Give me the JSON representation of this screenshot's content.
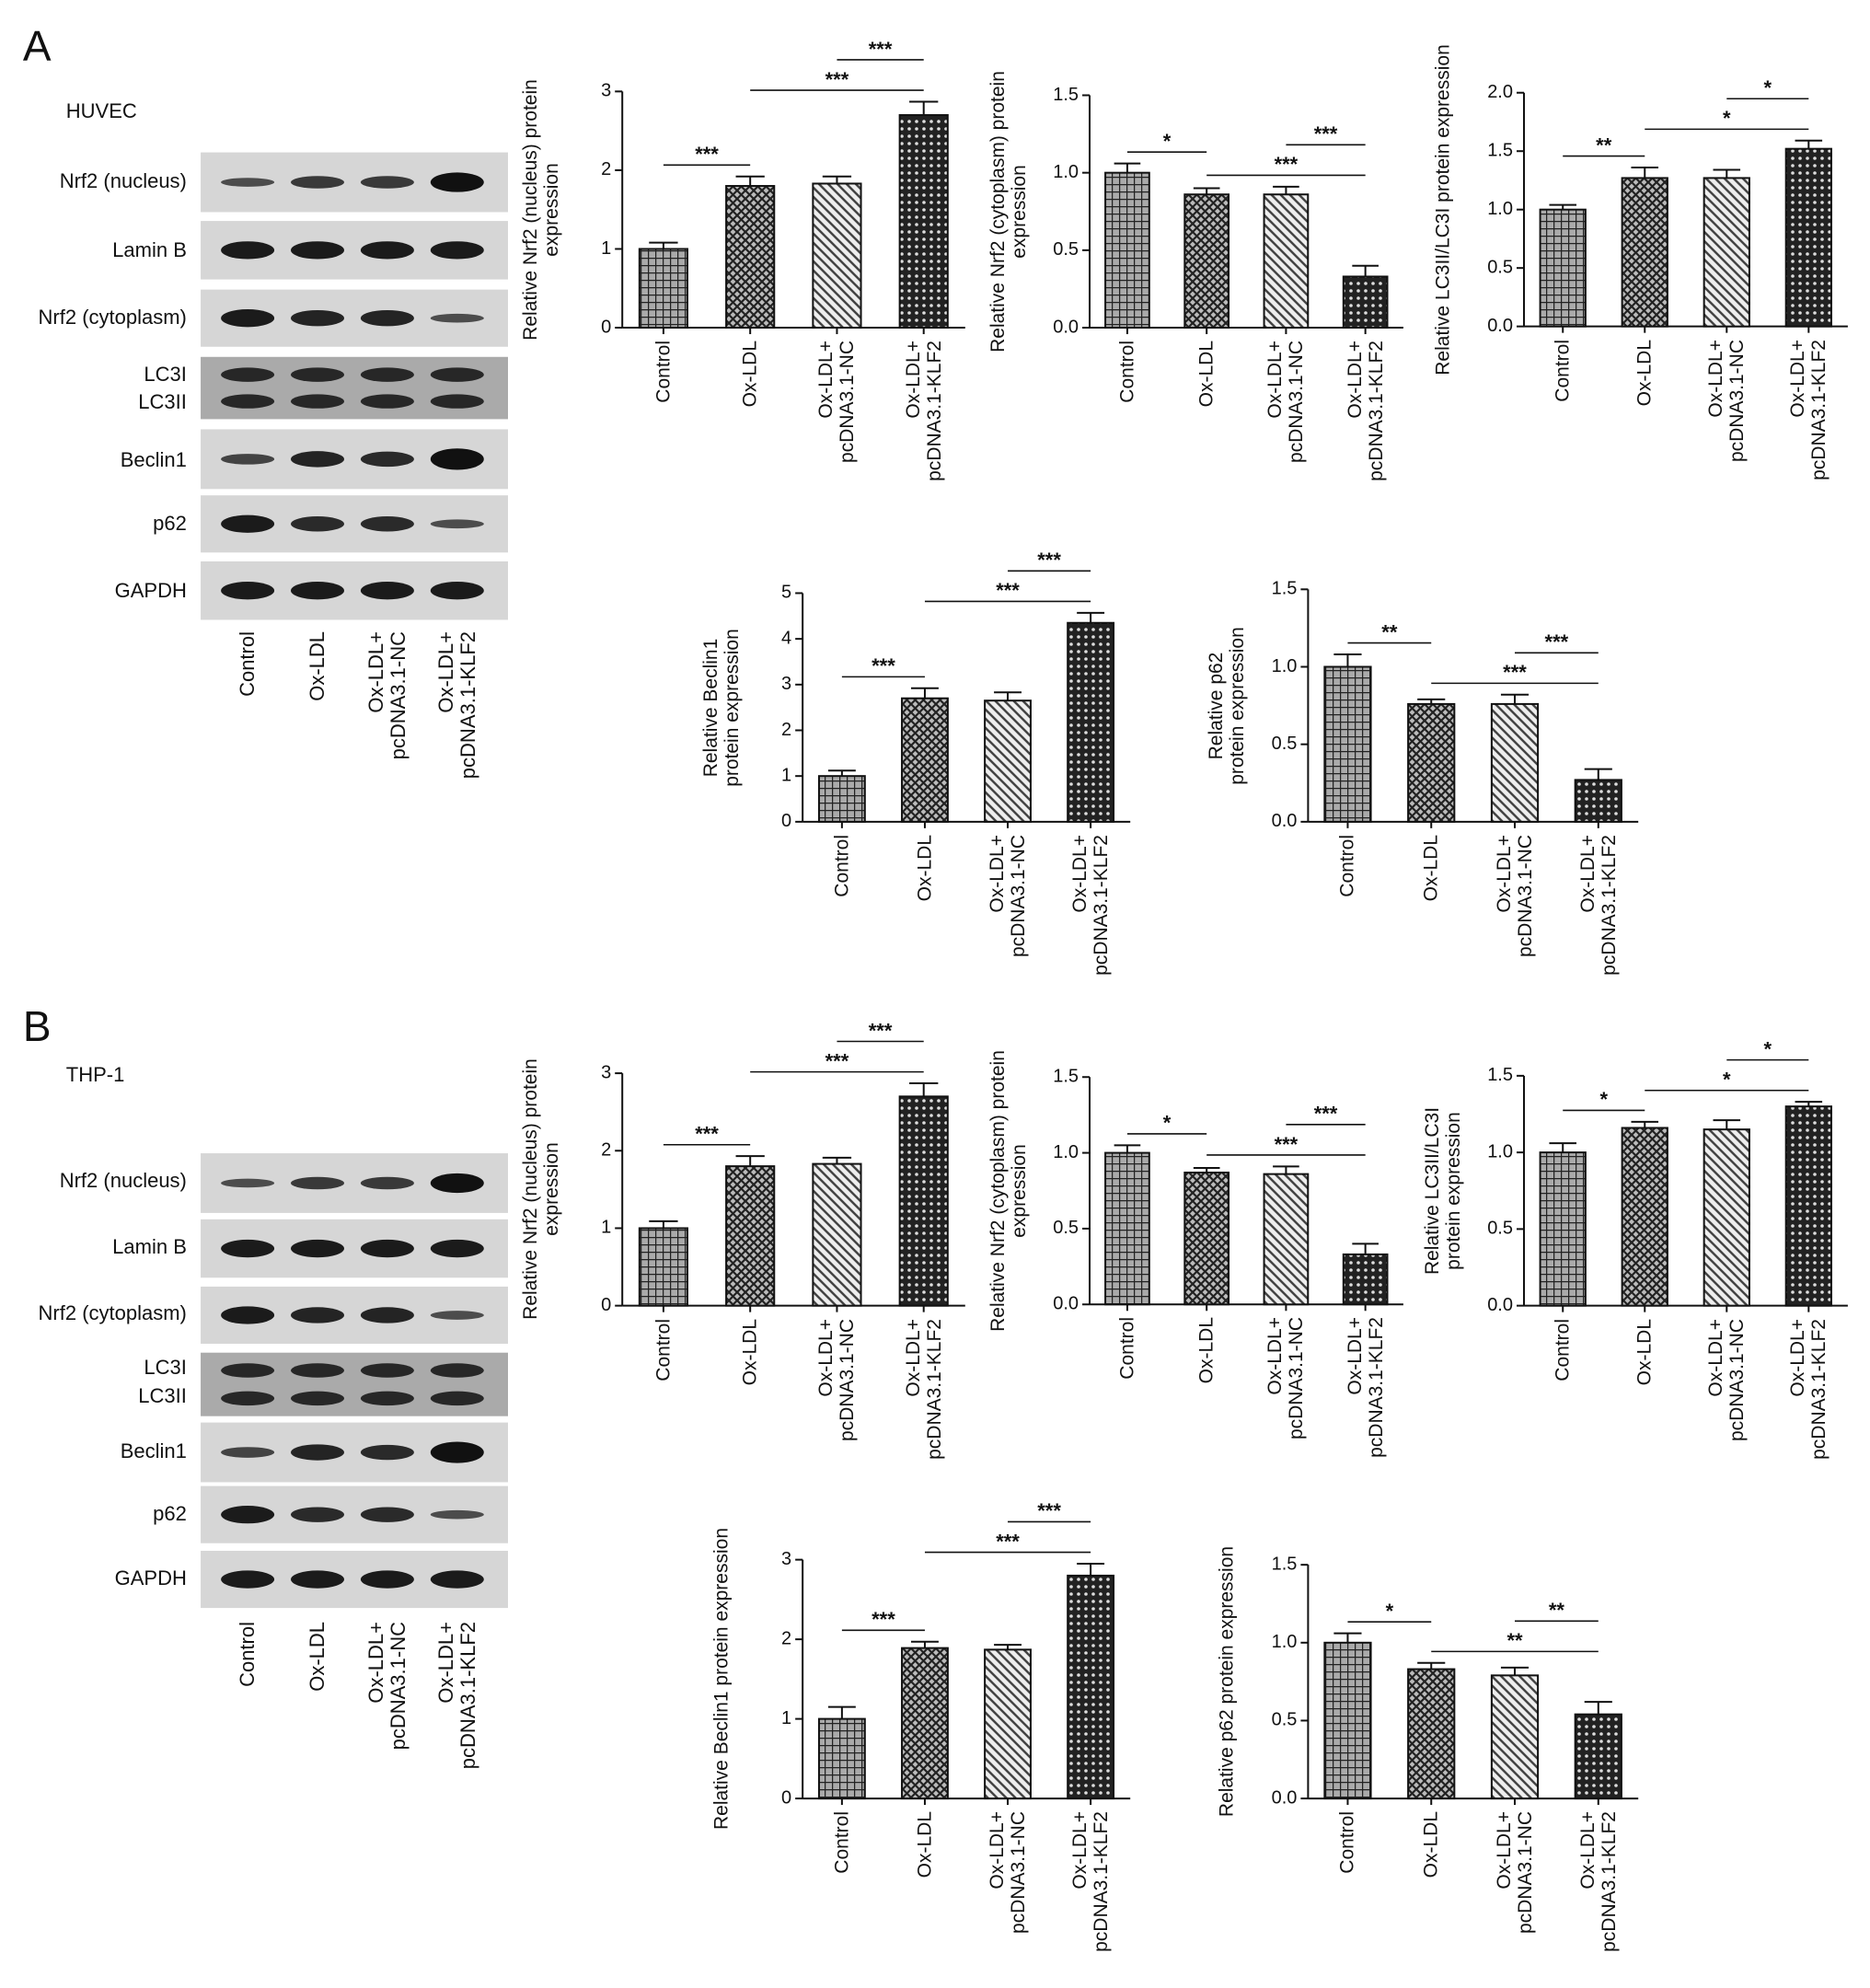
{
  "panels": [
    {
      "letter": "A",
      "cell_line": "HUVEC",
      "blot_labels": [
        "Nrf2 (nucleus)",
        "Lamin B",
        "Nrf2 (cytoplasm)",
        "LC3I",
        "LC3II",
        "Beclin1",
        "p62",
        "GAPDH"
      ],
      "lanes": [
        "Control",
        "Ox-LDL",
        "Ox-LDL+\npcDNA3.1-NC",
        "Ox-LDL+\npcDNA3.1-KLF2"
      ]
    },
    {
      "letter": "B",
      "cell_line": "THP-1",
      "blot_labels": [
        "Nrf2 (nucleus)",
        "Lamin B",
        "Nrf2 (cytoplasm)",
        "LC3I",
        "LC3II",
        "Beclin1",
        "p62",
        "GAPDH"
      ],
      "lanes": [
        "Control",
        "Ox-LDL",
        "Ox-LDL+\npcDNA3.1-NC",
        "Ox-LDL+\npcDNA3.1-KLF2"
      ]
    }
  ],
  "chart_data": [
    {
      "type": "bar",
      "ylabel": "Relative Nrf2 (nucleus) protein\nexpression",
      "categories": [
        "Control",
        "Ox-LDL",
        "Ox-LDL+\npcDNA3.1-NC",
        "Ox-LDL+\npcDNA3.1-KLF2"
      ],
      "values": [
        1.0,
        1.8,
        1.83,
        2.7
      ],
      "errors": [
        0.08,
        0.12,
        0.09,
        0.17
      ],
      "ylim": [
        0,
        3
      ],
      "yticks": [
        0,
        1,
        2,
        3
      ],
      "annotations": [
        {
          "text": "***",
          "from": 0,
          "to": 1
        },
        {
          "text": "***",
          "from": 1,
          "to": 3
        },
        {
          "text": "***",
          "from": 2,
          "to": 3
        }
      ]
    },
    {
      "type": "bar",
      "ylabel": "Relative Nrf2 (cytoplasm) protein\nexpression",
      "categories": [
        "Control",
        "Ox-LDL",
        "Ox-LDL+\npcDNA3.1-NC",
        "Ox-LDL+\npcDNA3.1-KLF2"
      ],
      "values": [
        1.0,
        0.86,
        0.86,
        0.33
      ],
      "errors": [
        0.06,
        0.04,
        0.05,
        0.07
      ],
      "ylim": [
        0,
        1.5
      ],
      "yticks": [
        {
          "value": 0,
          "label": "0.0"
        },
        {
          "value": 0.5,
          "label": "0.5"
        },
        {
          "value": 1,
          "label": "1.0"
        },
        {
          "value": 1.5,
          "label": "1.5"
        }
      ],
      "annotations": [
        {
          "text": "*",
          "from": 0,
          "to": 1
        },
        {
          "text": "***",
          "from": 1,
          "to": 3
        },
        {
          "text": "***",
          "from": 2,
          "to": 3
        }
      ]
    },
    {
      "type": "bar",
      "ylabel": "Relative LC3II/LC3I protein expression",
      "categories": [
        "Control",
        "Ox-LDL",
        "Ox-LDL+\npcDNA3.1-NC",
        "Ox-LDL+\npcDNA3.1-KLF2"
      ],
      "values": [
        1.0,
        1.27,
        1.27,
        1.52
      ],
      "errors": [
        0.04,
        0.09,
        0.07,
        0.07
      ],
      "ylim": [
        0,
        2
      ],
      "yticks": [
        {
          "value": 0,
          "label": "0.0"
        },
        {
          "value": 0.5,
          "label": "0.5"
        },
        {
          "value": 1,
          "label": "1.0"
        },
        {
          "value": 1.5,
          "label": "1.5"
        },
        {
          "value": 2,
          "label": "2.0"
        }
      ],
      "annotations": [
        {
          "text": "**",
          "from": 0,
          "to": 1
        },
        {
          "text": "*",
          "from": 1,
          "to": 3
        },
        {
          "text": "*",
          "from": 2,
          "to": 3
        }
      ]
    },
    {
      "type": "bar",
      "ylabel": "Relative Beclin1\nprotein expression",
      "categories": [
        "Control",
        "Ox-LDL",
        "Ox-LDL+\npcDNA3.1-NC",
        "Ox-LDL+\npcDNA3.1-KLF2"
      ],
      "values": [
        1.0,
        2.7,
        2.65,
        4.35
      ],
      "errors": [
        0.12,
        0.22,
        0.18,
        0.22
      ],
      "ylim": [
        0,
        5
      ],
      "yticks": [
        0,
        1,
        2,
        3,
        4,
        5
      ],
      "annotations": [
        {
          "text": "***",
          "from": 0,
          "to": 1
        },
        {
          "text": "***",
          "from": 1,
          "to": 3
        },
        {
          "text": "***",
          "from": 2,
          "to": 3
        }
      ]
    },
    {
      "type": "bar",
      "ylabel": "Relative p62\nprotein expression",
      "categories": [
        "Control",
        "Ox-LDL",
        "Ox-LDL+\npcDNA3.1-NC",
        "Ox-LDL+\npcDNA3.1-KLF2"
      ],
      "values": [
        1.0,
        0.76,
        0.76,
        0.27
      ],
      "errors": [
        0.08,
        0.03,
        0.06,
        0.07
      ],
      "ylim": [
        0,
        1.5
      ],
      "yticks": [
        {
          "value": 0,
          "label": "0.0"
        },
        {
          "value": 0.5,
          "label": "0.5"
        },
        {
          "value": 1,
          "label": "1.0"
        },
        {
          "value": 1.5,
          "label": "1.5"
        }
      ],
      "annotations": [
        {
          "text": "**",
          "from": 0,
          "to": 1
        },
        {
          "text": "***",
          "from": 1,
          "to": 3
        },
        {
          "text": "***",
          "from": 2,
          "to": 3
        }
      ]
    },
    {
      "type": "bar",
      "ylabel": "Relative Nrf2 (nucleus) protein\nexpression",
      "categories": [
        "Control",
        "Ox-LDL",
        "Ox-LDL+\npcDNA3.1-NC",
        "Ox-LDL+\npcDNA3.1-KLF2"
      ],
      "values": [
        1.0,
        1.8,
        1.83,
        2.7
      ],
      "errors": [
        0.09,
        0.13,
        0.08,
        0.17
      ],
      "ylim": [
        0,
        3
      ],
      "yticks": [
        0,
        1,
        2,
        3
      ],
      "annotations": [
        {
          "text": "***",
          "from": 0,
          "to": 1
        },
        {
          "text": "***",
          "from": 1,
          "to": 3
        },
        {
          "text": "***",
          "from": 2,
          "to": 3
        }
      ]
    },
    {
      "type": "bar",
      "ylabel": "Relative Nrf2 (cytoplasm) protein\nexpression",
      "categories": [
        "Control",
        "Ox-LDL",
        "Ox-LDL+\npcDNA3.1-NC",
        "Ox-LDL+\npcDNA3.1-KLF2"
      ],
      "values": [
        1.0,
        0.87,
        0.86,
        0.33
      ],
      "errors": [
        0.05,
        0.03,
        0.05,
        0.07
      ],
      "ylim": [
        0,
        1.5
      ],
      "yticks": [
        {
          "value": 0,
          "label": "0.0"
        },
        {
          "value": 0.5,
          "label": "0.5"
        },
        {
          "value": 1,
          "label": "1.0"
        },
        {
          "value": 1.5,
          "label": "1.5"
        }
      ],
      "annotations": [
        {
          "text": "*",
          "from": 0,
          "to": 1
        },
        {
          "text": "***",
          "from": 1,
          "to": 3
        },
        {
          "text": "***",
          "from": 2,
          "to": 3
        }
      ]
    },
    {
      "type": "bar",
      "ylabel": "Relative LC3II/LC3I\nprotein expression",
      "categories": [
        "Control",
        "Ox-LDL",
        "Ox-LDL+\npcDNA3.1-NC",
        "Ox-LDL+\npcDNA3.1-KLF2"
      ],
      "values": [
        1.0,
        1.16,
        1.15,
        1.3
      ],
      "errors": [
        0.06,
        0.04,
        0.06,
        0.03
      ],
      "ylim": [
        0,
        1.5
      ],
      "yticks": [
        {
          "value": 0,
          "label": "0.0"
        },
        {
          "value": 0.5,
          "label": "0.5"
        },
        {
          "value": 1,
          "label": "1.0"
        },
        {
          "value": 1.5,
          "label": "1.5"
        }
      ],
      "annotations": [
        {
          "text": "*",
          "from": 0,
          "to": 1
        },
        {
          "text": "*",
          "from": 1,
          "to": 3
        },
        {
          "text": "*",
          "from": 2,
          "to": 3
        }
      ]
    },
    {
      "type": "bar",
      "ylabel": "Relative Beclin1 protein expression",
      "categories": [
        "Control",
        "Ox-LDL",
        "Ox-LDL+\npcDNA3.1-NC",
        "Ox-LDL+\npcDNA3.1-KLF2"
      ],
      "values": [
        1.0,
        1.89,
        1.87,
        2.8
      ],
      "errors": [
        0.15,
        0.08,
        0.06,
        0.15
      ],
      "ylim": [
        0,
        3
      ],
      "yticks": [
        0,
        1,
        2,
        3
      ],
      "annotations": [
        {
          "text": "***",
          "from": 0,
          "to": 1
        },
        {
          "text": "***",
          "from": 1,
          "to": 3
        },
        {
          "text": "***",
          "from": 2,
          "to": 3
        }
      ]
    },
    {
      "type": "bar",
      "ylabel": "Relative p62 protein expression",
      "categories": [
        "Control",
        "Ox-LDL",
        "Ox-LDL+\npcDNA3.1-NC",
        "Ox-LDL+\npcDNA3.1-KLF2"
      ],
      "values": [
        1.0,
        0.83,
        0.79,
        0.54
      ],
      "errors": [
        0.06,
        0.04,
        0.05,
        0.08
      ],
      "ylim": [
        0,
        1.5
      ],
      "yticks": [
        {
          "value": 0,
          "label": "0.0"
        },
        {
          "value": 0.5,
          "label": "0.5"
        },
        {
          "value": 1,
          "label": "1.0"
        },
        {
          "value": 1.5,
          "label": "1.5"
        }
      ],
      "annotations": [
        {
          "text": "*",
          "from": 0,
          "to": 1
        },
        {
          "text": "**",
          "from": 1,
          "to": 3
        },
        {
          "text": "**",
          "from": 2,
          "to": 3
        }
      ]
    }
  ]
}
